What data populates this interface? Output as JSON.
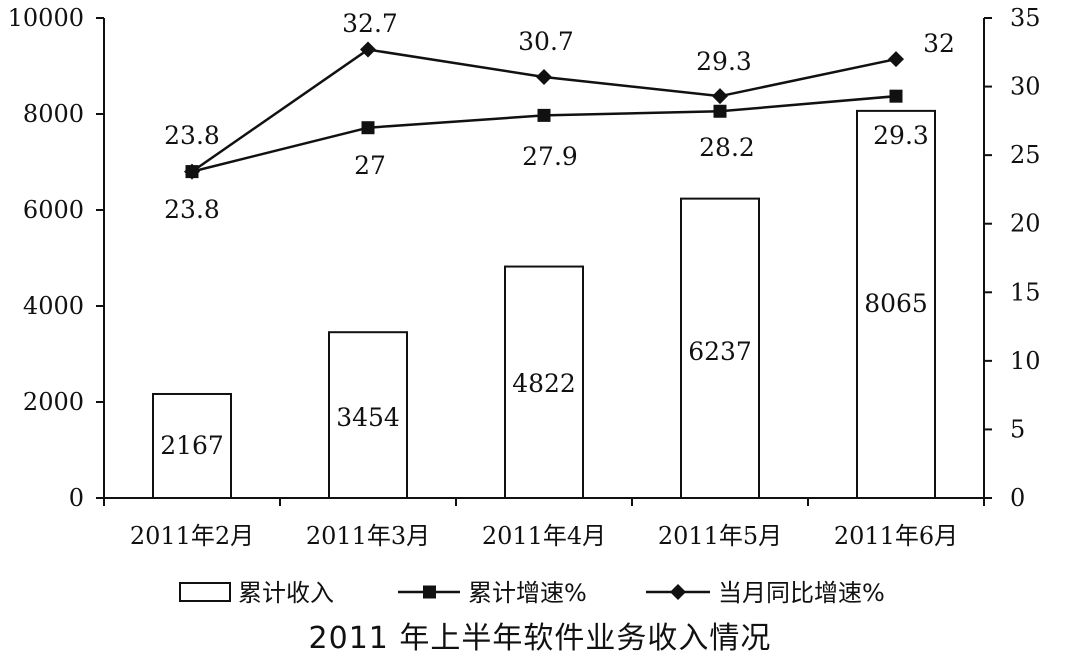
{
  "chart_data": {
    "type": "bar+line",
    "title": "2011 年上半年软件业务收入情况",
    "categories": [
      "2011年2月",
      "2011年3月",
      "2011年4月",
      "2011年5月",
      "2011年6月"
    ],
    "y_left": {
      "min": 0,
      "max": 10000,
      "ticks": [
        0,
        2000,
        4000,
        6000,
        8000,
        10000
      ]
    },
    "y_right": {
      "min": 0,
      "max": 35,
      "ticks": [
        0,
        5,
        10,
        15,
        20,
        25,
        30,
        35
      ]
    },
    "series": [
      {
        "name": "累计收入",
        "kind": "bar",
        "axis": "left",
        "values": [
          2167,
          3454,
          4822,
          6237,
          8065
        ],
        "labels": [
          "2167",
          "3454",
          "4822",
          "6237",
          "8065"
        ]
      },
      {
        "name": "累计增速%",
        "kind": "line",
        "marker": "square",
        "axis": "right",
        "values": [
          23.8,
          27,
          27.9,
          28.2,
          29.3
        ],
        "labels": [
          "23.8",
          "27",
          "27.9",
          "28.2",
          "29.3"
        ]
      },
      {
        "name": "当月同比增速%",
        "kind": "line",
        "marker": "diamond",
        "axis": "right",
        "values": [
          23.8,
          32.7,
          30.7,
          29.3,
          32
        ],
        "labels": [
          "23.8",
          "32.7",
          "30.7",
          "29.3",
          "32"
        ]
      }
    ],
    "legend_position": "bottom",
    "grid": false,
    "colors": {
      "line": "#111111",
      "bar_fill": "#ffffff",
      "bar_stroke": "#111111"
    }
  }
}
